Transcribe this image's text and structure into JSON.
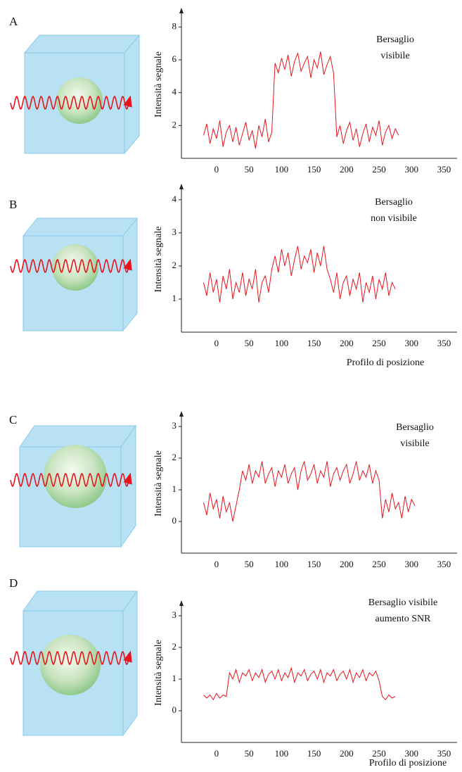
{
  "chart_data": [
    {
      "type": "line",
      "panel_label": "A",
      "annotation": [
        "Bersaglio",
        "visibile"
      ],
      "y_label": "Intensità segnale",
      "color": "#e8141c",
      "xlim": [
        -54,
        370
      ],
      "ylim": [
        0,
        9
      ],
      "xticks": [
        0,
        50,
        100,
        150,
        200,
        250,
        300,
        350
      ],
      "yticks": [
        2,
        4,
        6,
        8
      ],
      "x": [
        -20,
        -15,
        -10,
        -5,
        0,
        5,
        10,
        15,
        20,
        25,
        30,
        35,
        40,
        45,
        50,
        55,
        60,
        65,
        70,
        75,
        80,
        85,
        90,
        95,
        100,
        105,
        110,
        115,
        120,
        125,
        130,
        135,
        140,
        145,
        150,
        155,
        160,
        165,
        170,
        175,
        180,
        185,
        190,
        195,
        200,
        205,
        210,
        215,
        220,
        225,
        230,
        235,
        240,
        245,
        250,
        255,
        260,
        265,
        270,
        275,
        280
      ],
      "values": [
        1.4,
        2.1,
        0.9,
        1.8,
        1.2,
        2.3,
        0.7,
        1.6,
        2.0,
        1.0,
        1.9,
        0.8,
        1.5,
        2.2,
        1.1,
        1.7,
        0.6,
        2.0,
        1.3,
        2.4,
        1.0,
        1.6,
        5.8,
        5.2,
        6.1,
        5.4,
        6.3,
        5.0,
        5.9,
        6.4,
        5.3,
        5.8,
        6.2,
        4.9,
        6.0,
        5.5,
        6.5,
        5.1,
        5.7,
        6.2,
        5.2,
        1.3,
        2.0,
        0.9,
        1.7,
        2.2,
        1.1,
        1.8,
        0.7,
        1.5,
        2.1,
        1.0,
        1.9,
        1.4,
        2.3,
        0.8,
        1.6,
        2.0,
        1.2,
        1.8,
        1.4
      ]
    },
    {
      "type": "line",
      "panel_label": "B",
      "annotation": [
        "Bersaglio",
        "non visibile"
      ],
      "y_label": "Intensità segnale",
      "x_label": "Profilo di posizione",
      "color": "#e8141c",
      "xlim": [
        -54,
        370
      ],
      "ylim": [
        0,
        4.4
      ],
      "xticks": [
        0,
        50,
        100,
        150,
        200,
        250,
        300,
        350
      ],
      "yticks": [
        1,
        2,
        3,
        4
      ],
      "x": [
        -20,
        -15,
        -10,
        -5,
        0,
        5,
        10,
        15,
        20,
        25,
        30,
        35,
        40,
        45,
        50,
        55,
        60,
        65,
        70,
        75,
        80,
        85,
        90,
        95,
        100,
        105,
        110,
        115,
        120,
        125,
        130,
        135,
        140,
        145,
        150,
        155,
        160,
        165,
        170,
        175,
        180,
        185,
        190,
        195,
        200,
        205,
        210,
        215,
        220,
        225,
        230,
        235,
        240,
        245,
        250,
        255,
        260,
        265,
        270,
        275
      ],
      "values": [
        1.5,
        1.1,
        1.8,
        1.2,
        1.6,
        0.9,
        1.7,
        1.3,
        1.9,
        1.0,
        1.5,
        1.2,
        1.8,
        1.1,
        1.6,
        1.3,
        1.9,
        0.9,
        1.5,
        1.7,
        1.2,
        1.9,
        2.3,
        1.8,
        2.5,
        2.0,
        2.4,
        1.7,
        2.2,
        2.6,
        1.9,
        2.3,
        2.1,
        2.5,
        1.8,
        2.4,
        2.0,
        2.6,
        1.9,
        1.6,
        1.2,
        1.8,
        1.0,
        1.5,
        1.7,
        1.1,
        1.6,
        1.3,
        1.8,
        0.9,
        1.5,
        1.2,
        1.7,
        1.0,
        1.6,
        1.3,
        1.8,
        1.1,
        1.5,
        1.3
      ]
    },
    {
      "type": "line",
      "panel_label": "C",
      "annotation": [
        "Bersaglio",
        "visibile"
      ],
      "y_label": "Intensità segnale",
      "color": "#e8141c",
      "xlim": [
        -54,
        370
      ],
      "ylim": [
        -1,
        3.4
      ],
      "xticks": [
        0,
        50,
        100,
        150,
        200,
        250,
        300,
        350
      ],
      "yticks": [
        0,
        1,
        2,
        3
      ],
      "x": [
        -20,
        -15,
        -10,
        -5,
        0,
        5,
        10,
        15,
        20,
        25,
        30,
        35,
        40,
        45,
        50,
        55,
        60,
        65,
        70,
        75,
        80,
        85,
        90,
        95,
        100,
        105,
        110,
        115,
        120,
        125,
        130,
        135,
        140,
        145,
        150,
        155,
        160,
        165,
        170,
        175,
        180,
        185,
        190,
        195,
        200,
        205,
        210,
        215,
        220,
        225,
        230,
        235,
        240,
        245,
        250,
        255,
        260,
        265,
        270,
        275,
        280,
        285,
        290,
        295,
        300,
        305
      ],
      "values": [
        0.6,
        0.2,
        0.9,
        0.4,
        0.7,
        0.1,
        0.8,
        0.3,
        0.6,
        0.0,
        0.5,
        1.0,
        1.6,
        1.3,
        1.8,
        1.2,
        1.6,
        1.4,
        1.9,
        1.2,
        1.5,
        1.7,
        1.1,
        1.6,
        1.4,
        1.8,
        1.2,
        1.5,
        1.7,
        1.0,
        1.6,
        1.9,
        1.3,
        1.5,
        1.8,
        1.2,
        1.6,
        1.4,
        1.9,
        1.1,
        1.5,
        1.7,
        1.3,
        1.6,
        1.8,
        1.2,
        1.5,
        1.9,
        1.3,
        1.6,
        1.4,
        1.8,
        1.2,
        1.6,
        1.3,
        0.1,
        0.7,
        0.3,
        0.9,
        0.4,
        0.6,
        0.1,
        0.8,
        0.3,
        0.7,
        0.5
      ]
    },
    {
      "type": "line",
      "panel_label": "D",
      "annotation": [
        "Bersaglio visibile",
        "aumento SNR"
      ],
      "y_label": "Intensità segnale",
      "x_label": "Profilo di posizione",
      "color": "#e8141c",
      "xlim": [
        -54,
        370
      ],
      "ylim": [
        -1,
        3.4
      ],
      "xticks": [
        0,
        50,
        100,
        150,
        200,
        250,
        300,
        350
      ],
      "yticks": [
        0,
        1,
        2,
        3
      ],
      "x": [
        -20,
        -15,
        -10,
        -5,
        0,
        5,
        10,
        15,
        20,
        25,
        30,
        35,
        40,
        45,
        50,
        55,
        60,
        65,
        70,
        75,
        80,
        85,
        90,
        95,
        100,
        105,
        110,
        115,
        120,
        125,
        130,
        135,
        140,
        145,
        150,
        155,
        160,
        165,
        170,
        175,
        180,
        185,
        190,
        195,
        200,
        205,
        210,
        215,
        220,
        225,
        230,
        235,
        240,
        245,
        250,
        255,
        260,
        265,
        270,
        275
      ],
      "values": [
        0.5,
        0.4,
        0.5,
        0.35,
        0.55,
        0.4,
        0.5,
        0.45,
        1.2,
        1.0,
        1.3,
        0.9,
        1.2,
        1.1,
        1.3,
        0.95,
        1.2,
        1.05,
        1.3,
        0.9,
        1.15,
        1.25,
        1.0,
        1.3,
        0.95,
        1.2,
        1.05,
        1.35,
        0.9,
        1.2,
        1.1,
        1.3,
        0.95,
        1.15,
        1.25,
        1.0,
        1.3,
        0.9,
        1.2,
        1.1,
        1.3,
        0.95,
        1.15,
        1.25,
        1.0,
        1.3,
        0.9,
        1.2,
        1.05,
        1.3,
        0.95,
        1.2,
        1.1,
        1.25,
        0.95,
        0.45,
        0.35,
        0.5,
        0.4,
        0.45
      ]
    }
  ]
}
